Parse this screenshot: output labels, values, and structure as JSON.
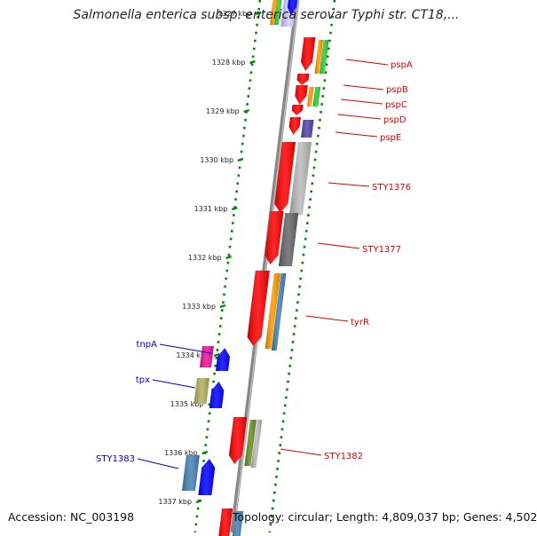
{
  "header": {
    "title": "Salmonella enterica subsp. enterica serovar Typhi str. CT18,..."
  },
  "footer": {
    "accession": "Accession: NC_003198",
    "topology": "Topology: circular; Length: 4,809,037 bp; Genes: 4,502"
  },
  "scale": {
    "ticks": [
      "1327 kbp",
      "1328 kbp",
      "1329 kbp",
      "1330 kbp",
      "1331 kbp",
      "1332 kbp",
      "1333 kbp",
      "1334 kbp",
      "1335 kbp",
      "1336 kbp",
      "1337 kbp"
    ]
  },
  "genes_forward": [
    {
      "label": "pspA",
      "color": "#dd0000"
    },
    {
      "label": "pspB",
      "color": "#dd0000"
    },
    {
      "label": "pspC",
      "color": "#dd0000"
    },
    {
      "label": "pspD",
      "color": "#dd0000"
    },
    {
      "label": "pspE",
      "color": "#dd0000"
    },
    {
      "label": "STY1376",
      "color": "#dd0000"
    },
    {
      "label": "STY1377",
      "color": "#dd0000"
    },
    {
      "label": "tyrR",
      "color": "#dd0000"
    },
    {
      "label": "STY1382",
      "color": "#dd0000"
    }
  ],
  "genes_reverse": [
    {
      "label": "tnpA",
      "color": "#0000cc"
    },
    {
      "label": "tpx",
      "color": "#0000cc"
    },
    {
      "label": "STY1383",
      "color": "#0000cc"
    }
  ],
  "colors": {
    "red": "#ff0000",
    "blue": "#0000ff",
    "orange": "#ff9900",
    "green": "#33cc33",
    "purple": "#5544aa",
    "magenta": "#ee1199",
    "olive": "#b5b060",
    "darkgreen": "#6b8e23",
    "steelblue": "#4682b4",
    "lightgray": "#bbbbbb",
    "darkgray": "#666666",
    "backbone": "#888888",
    "scale_dots": "#008800"
  }
}
